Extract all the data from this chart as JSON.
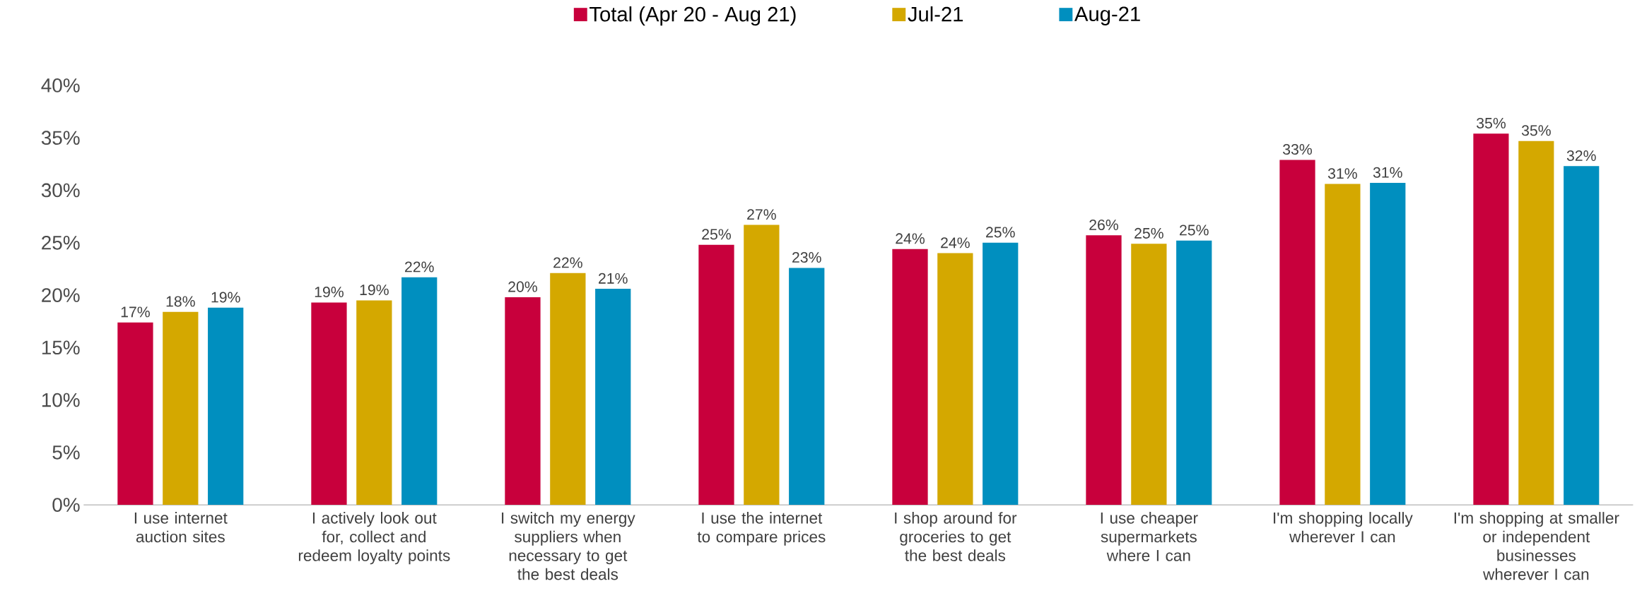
{
  "chart_data": {
    "type": "bar",
    "categories": [
      "I use internet auction sites",
      "I actively look out for, collect and redeem loyalty points",
      "I switch my energy suppliers when necessary to get the best deals",
      "I use the internet to compare prices",
      "I shop around for groceries to get the best deals",
      "I use cheaper supermarkets where I can",
      "I'm shopping locally wherever I can",
      "I'm shopping at smaller or independent businesses wherever I can"
    ],
    "series": [
      {
        "name": "Total (Apr 20 - Aug 21)",
        "color": "#c8003c",
        "values": [
          17.4,
          19.3,
          19.8,
          24.8,
          24.4,
          25.7,
          32.9,
          35.4
        ],
        "value_labels": [
          "17%",
          "19%",
          "20%",
          "25%",
          "24%",
          "26%",
          "33%",
          "35%"
        ]
      },
      {
        "name": "Jul-21",
        "color": "#d4a800",
        "values": [
          18.4,
          19.5,
          22.1,
          26.7,
          24.0,
          24.9,
          30.6,
          34.7
        ],
        "value_labels": [
          "18%",
          "19%",
          "22%",
          "27%",
          "24%",
          "25%",
          "31%",
          "35%"
        ]
      },
      {
        "name": "Aug-21",
        "color": "#008fbf",
        "values": [
          18.8,
          21.7,
          20.6,
          22.6,
          25.0,
          25.2,
          30.7,
          32.3
        ],
        "value_labels": [
          "19%",
          "22%",
          "21%",
          "23%",
          "25%",
          "25%",
          "31%",
          "32%"
        ]
      }
    ],
    "ylim": [
      0,
      40
    ],
    "yticks": [
      {
        "value": 0,
        "label": "0%"
      },
      {
        "value": 5,
        "label": "5%"
      },
      {
        "value": 10,
        "label": "10%"
      },
      {
        "value": 15,
        "label": "15%"
      },
      {
        "value": 20,
        "label": "20%"
      },
      {
        "value": 25,
        "label": "25%"
      },
      {
        "value": 30,
        "label": "30%"
      },
      {
        "value": 35,
        "label": "35%"
      },
      {
        "value": 40,
        "label": "40%"
      }
    ],
    "legend": "top"
  }
}
